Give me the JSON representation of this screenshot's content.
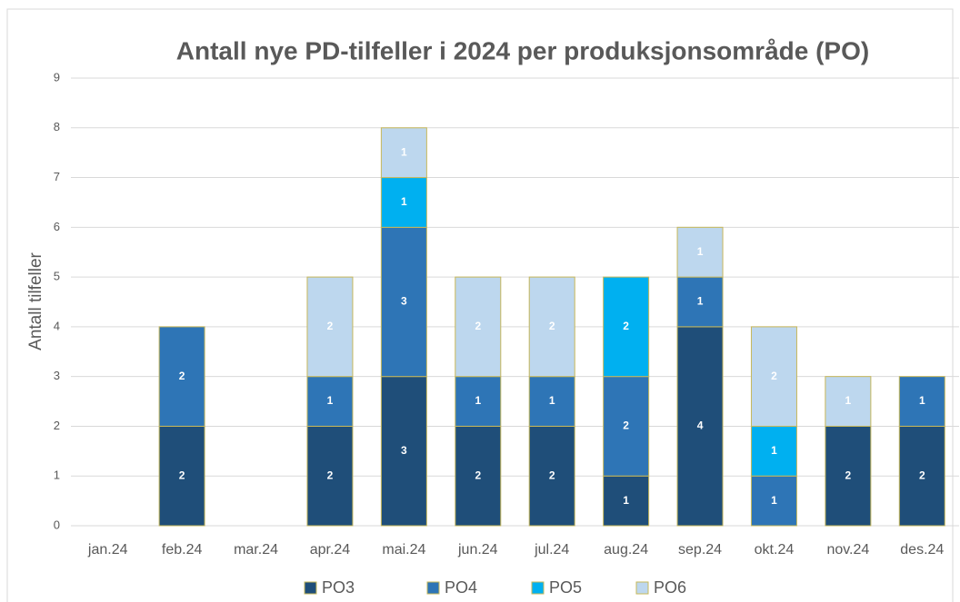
{
  "chart_data": {
    "type": "stacked_bar",
    "title": "Antall nye PD-tilfeller i 2024 per produksjonsområde (PO)",
    "y_label": "Antall tilfeller",
    "categories": [
      "jan.24",
      "feb.24",
      "mar.24",
      "apr.24",
      "mai.24",
      "jun.24",
      "jul.24",
      "aug.24",
      "sep.24",
      "okt.24",
      "nov.24",
      "des.24"
    ],
    "series": [
      {
        "name": "PO3",
        "color": "#1f4e79",
        "values": [
          null,
          2,
          null,
          2,
          3,
          2,
          2,
          1,
          4,
          null,
          2,
          2
        ]
      },
      {
        "name": "PO4",
        "color": "#2e75b6",
        "values": [
          null,
          2,
          null,
          1,
          3,
          1,
          1,
          2,
          1,
          1,
          null,
          1
        ]
      },
      {
        "name": "PO5",
        "color": "#00b0f0",
        "values": [
          null,
          null,
          null,
          null,
          1,
          null,
          null,
          2,
          null,
          1,
          null,
          null
        ]
      },
      {
        "name": "PO6",
        "color": "#bdd7ee",
        "values": [
          null,
          null,
          null,
          2,
          1,
          2,
          2,
          null,
          1,
          2,
          1,
          null
        ]
      }
    ],
    "ylim": [
      0,
      9
    ],
    "yticks": [
      0,
      1,
      2,
      3,
      4,
      5,
      6,
      7,
      8,
      9
    ],
    "grid": true,
    "legend": "bottom"
  }
}
